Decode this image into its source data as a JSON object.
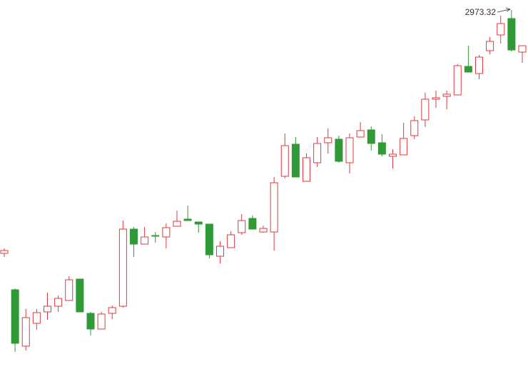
{
  "chart_data": {
    "type": "candlestick",
    "open": [
      2461.82,
      2385.32,
      2266.82,
      2314.82,
      2338.82,
      2350.82,
      2362.82,
      2407.82,
      2335.82,
      2302.82,
      2335.82,
      2350.82,
      2512.82,
      2481.32,
      2499.32,
      2496.32,
      2518.82,
      2533.82,
      2527.82,
      2523.32,
      2455.82,
      2473.82,
      2505.32,
      2535.32,
      2506.82,
      2506.82,
      2623.82,
      2691.32,
      2613.32,
      2652.32,
      2694.32,
      2701.82,
      2652.32,
      2706.32,
      2721.32,
      2694.32,
      2665.82,
      2668.82,
      2709.32,
      2742.32,
      2785.82,
      2791.82,
      2794.82,
      2854.82,
      2839.82,
      2887.82,
      2920.82,
      2955.32,
      2884.82
    ],
    "high": [
      2472.32,
      2388.32,
      2344.82,
      2344.82,
      2379.32,
      2373.32,
      2413.82,
      2407.82,
      2338.82,
      2338.82,
      2352.32,
      2530.82,
      2517.32,
      2517.32,
      2506.82,
      2524.82,
      2551.82,
      2562.32,
      2527.82,
      2523.32,
      2487.32,
      2508.32,
      2544.32,
      2541.32,
      2520.32,
      2622.32,
      2713.82,
      2706.32,
      2671.82,
      2706.32,
      2724.32,
      2709.32,
      2713.82,
      2737.82,
      2728.82,
      2712.32,
      2680.82,
      2736.32,
      2749.82,
      2799.32,
      2803.82,
      2803.82,
      2859.32,
      2898.32,
      2878.82,
      2916.32,
      2961.32,
      2973.32,
      2898.32
    ],
    "low": [
      2454.32,
      2254.82,
      2257.82,
      2301.32,
      2322.32,
      2338.82,
      2362.82,
      2338.82,
      2289.32,
      2302.82,
      2323.82,
      2347.82,
      2454.32,
      2481.32,
      2484.32,
      2472.32,
      2518.82,
      2530.82,
      2505.32,
      2451.32,
      2440.82,
      2473.82,
      2500.82,
      2512.82,
      2505.32,
      2467.82,
      2619.32,
      2622.32,
      2613.32,
      2643.32,
      2671.82,
      2652.32,
      2629.82,
      2706.32,
      2677.82,
      2665.82,
      2640.32,
      2668.82,
      2701.82,
      2727.32,
      2767.82,
      2764.82,
      2794.82,
      2842.82,
      2827.82,
      2880.32,
      2902.82,
      2886.32,
      2862.32
    ],
    "close": [
      2467.82,
      2272.82,
      2326.82,
      2337.32,
      2350.82,
      2367.32,
      2406.32,
      2338.82,
      2302.82,
      2334.32,
      2347.82,
      2512.82,
      2481.32,
      2496.32,
      2497.82,
      2515.82,
      2529.32,
      2530.82,
      2523.32,
      2458.82,
      2476.82,
      2500.82,
      2530.82,
      2512.82,
      2514.32,
      2610.32,
      2688.32,
      2622.32,
      2662.82,
      2692.82,
      2704.82,
      2655.32,
      2704.82,
      2719.82,
      2692.82,
      2670.32,
      2670.32,
      2703.32,
      2740.82,
      2785.82,
      2788.82,
      2796.32,
      2856.32,
      2842.82,
      2874.32,
      2907.32,
      2944.82,
      2889.32,
      2898.32
    ],
    "up_color": "#e0393e",
    "down_color": "#2f9a36",
    "ylim": [
      2218.82,
      2994.32
    ]
  }
}
